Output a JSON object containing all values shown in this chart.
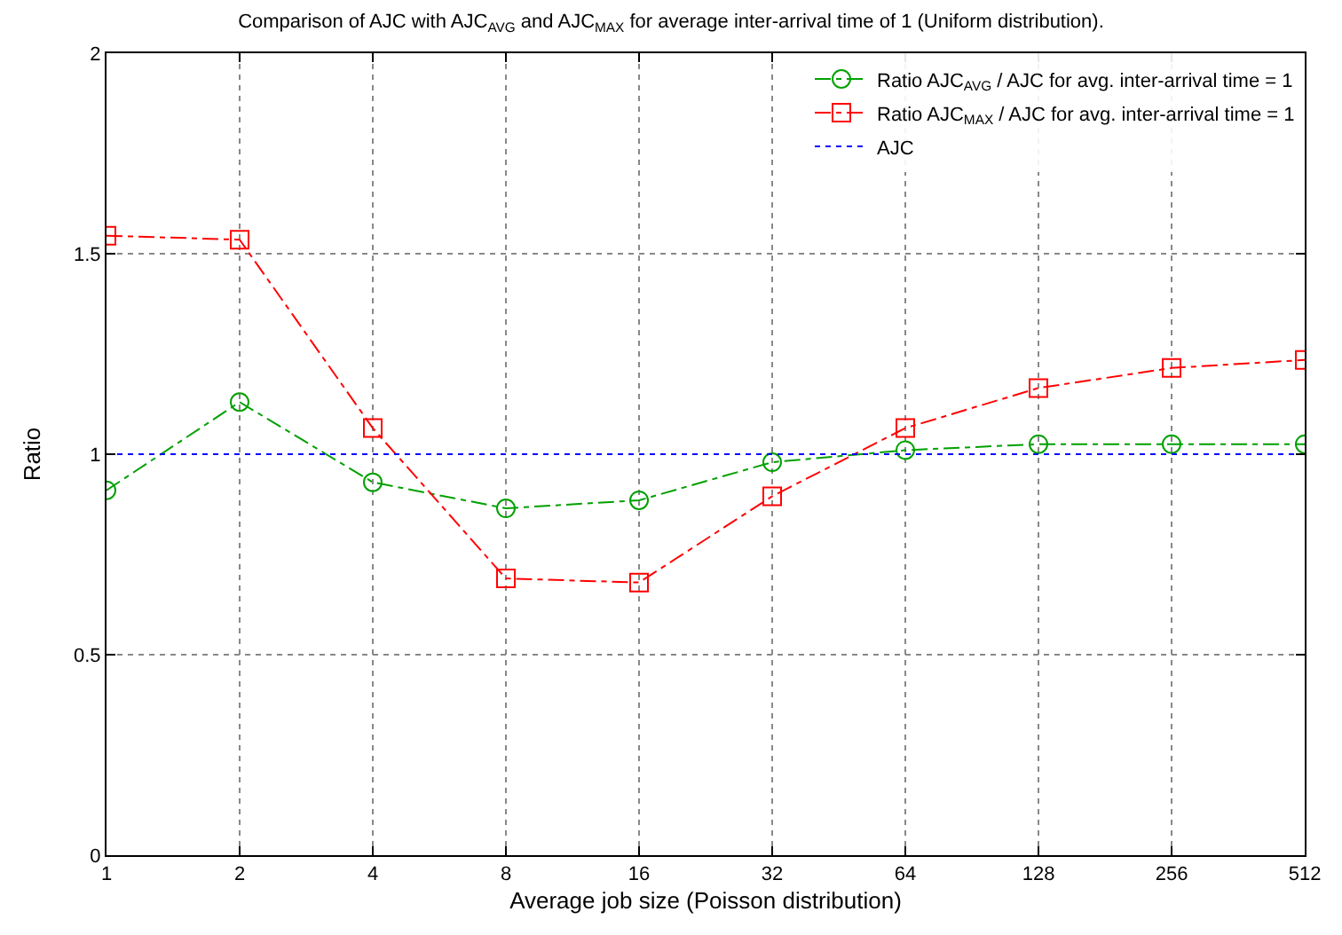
{
  "chart_data": {
    "type": "line",
    "title": "Comparison of AJC with AJC$_{AVG}$ and AJC$_{MAX}$ for average inter-arrival time of 1 (Uniform distribution).",
    "xlabel": "Average job size (Poisson distribution)",
    "ylabel": "Ratio",
    "categories": [
      "1",
      "2",
      "4",
      "8",
      "16",
      "32",
      "64",
      "128",
      "256",
      "512"
    ],
    "series": [
      {
        "name": "Ratio AJC$_{AVG}$ / AJC for avg. inter-arrival time = 1",
        "color": "#00a000",
        "marker": "circle",
        "line_style": "dashed",
        "values": [
          0.91,
          1.13,
          0.93,
          0.865,
          0.885,
          0.98,
          1.01,
          1.025,
          1.025,
          1.025
        ]
      },
      {
        "name": "Ratio AJC$_{MAX}$ / AJC for avg. inter-arrival time = 1",
        "color": "#ff0000",
        "marker": "square",
        "line_style": "dashed",
        "values": [
          1.545,
          1.535,
          1.065,
          0.69,
          0.68,
          0.895,
          1.065,
          1.165,
          1.215,
          1.235
        ]
      },
      {
        "name": "AJC",
        "color": "#0000ff",
        "marker": "none",
        "line_style": "dotted",
        "values": [
          1,
          1,
          1,
          1,
          1,
          1,
          1,
          1,
          1,
          1
        ]
      }
    ],
    "ylim": [
      0,
      2
    ],
    "yticks": [
      0,
      0.5,
      1,
      1.5,
      2
    ],
    "grid": true,
    "legend": "top right"
  }
}
